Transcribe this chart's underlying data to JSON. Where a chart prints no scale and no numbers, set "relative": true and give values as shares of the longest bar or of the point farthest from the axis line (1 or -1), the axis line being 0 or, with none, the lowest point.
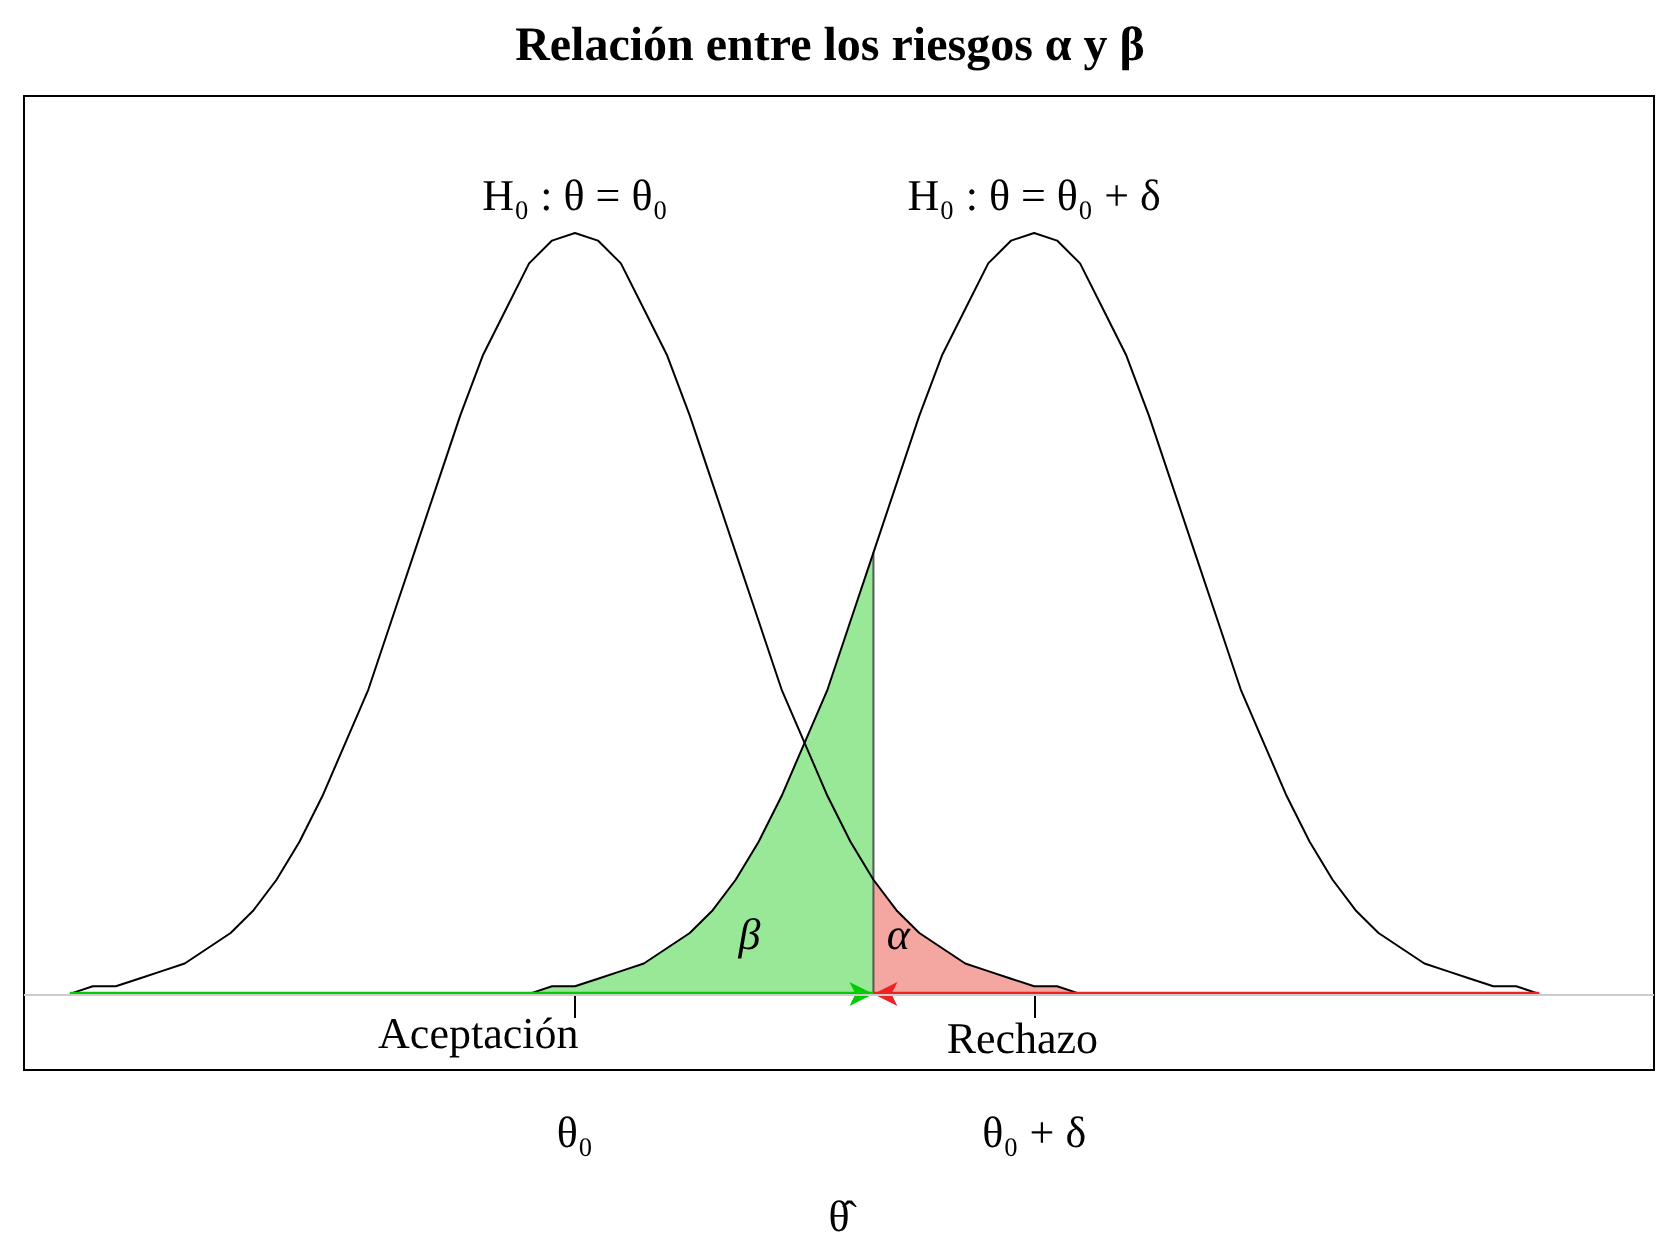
{
  "chart_data": {
    "type": "line",
    "title": "Relación entre los riesgos α y β",
    "xlabel": "θ̂",
    "relative": true,
    "grid": false,
    "categories": [
      null,
      null,
      null,
      null,
      null,
      null,
      null,
      null,
      null,
      null,
      null,
      null,
      null,
      null,
      null,
      null,
      null,
      null,
      null,
      null,
      null,
      null,
      null,
      null,
      "θ₀",
      null,
      null,
      null,
      null,
      null,
      null,
      null,
      null,
      null,
      null,
      null,
      null,
      null,
      null,
      null,
      null,
      null,
      null,
      null,
      "θ₀ + δ",
      null,
      null,
      null,
      null,
      null,
      null,
      null,
      null,
      null,
      null,
      null,
      null,
      null,
      null,
      null,
      null,
      null,
      null,
      null,
      null,
      null,
      null,
      null,
      null,
      null,
      null,
      null
    ],
    "series": [
      {
        "type": "area",
        "color": "#98e898",
        "values": [
          null,
          null,
          null,
          null,
          null,
          null,
          null,
          null,
          null,
          null,
          null,
          null,
          null,
          null,
          null,
          null,
          null,
          null,
          null,
          null,
          null,
          null,
          0,
          0.01,
          0.01,
          0.02,
          0.03,
          0.04,
          0.06,
          0.08,
          0.11,
          0.15,
          0.2,
          0.26,
          0.33,
          0.4,
          0.49,
          0.58,
          null,
          null,
          null,
          null,
          null,
          null,
          null,
          null,
          null,
          null,
          null,
          null,
          null,
          null,
          null,
          null,
          null,
          null,
          null,
          null,
          null,
          null,
          null,
          null,
          null,
          null,
          null,
          null,
          null,
          null,
          null,
          null,
          null,
          null
        ]
      },
      {
        "type": "area",
        "color": "#f4a6a0",
        "values": [
          null,
          null,
          null,
          null,
          null,
          null,
          null,
          null,
          null,
          null,
          null,
          null,
          null,
          null,
          null,
          null,
          null,
          null,
          null,
          null,
          null,
          null,
          null,
          null,
          null,
          null,
          null,
          null,
          null,
          null,
          null,
          null,
          null,
          null,
          null,
          null,
          null,
          0.15,
          0.11,
          0.08,
          0.06,
          0.04,
          0.03,
          0.02,
          0.01,
          0.01,
          0,
          null,
          null,
          null,
          null,
          null,
          null,
          null,
          null,
          null,
          null,
          null,
          null,
          null,
          null,
          null,
          null,
          null,
          null,
          null,
          null,
          null,
          null,
          null,
          null,
          null
        ]
      },
      {
        "type": "bar",
        "color": "#555555",
        "values": [
          null,
          null,
          null,
          null,
          null,
          null,
          null,
          null,
          null,
          null,
          null,
          null,
          null,
          null,
          null,
          null,
          null,
          null,
          null,
          null,
          null,
          null,
          null,
          null,
          null,
          null,
          null,
          null,
          null,
          null,
          null,
          null,
          null,
          null,
          null,
          null,
          null,
          0.58,
          null,
          null,
          null,
          null,
          null,
          null,
          null,
          null,
          null,
          null,
          null,
          null,
          null,
          null,
          null,
          null,
          null,
          null,
          null,
          null,
          null,
          null,
          null,
          null,
          null,
          null,
          null,
          null,
          null,
          null,
          null,
          null,
          null,
          null
        ]
      },
      {
        "color": "#000000",
        "values": [
          null,
          null,
          0,
          0.01,
          0.01,
          0.02,
          0.03,
          0.04,
          0.06,
          0.08,
          0.11,
          0.15,
          0.2,
          0.26,
          0.33,
          0.4,
          0.49,
          0.58,
          0.67,
          0.76,
          0.84,
          0.9,
          0.96,
          0.99,
          1,
          0.99,
          0.96,
          0.9,
          0.84,
          0.76,
          0.67,
          0.58,
          0.49,
          0.4,
          0.33,
          0.26,
          0.2,
          0.15,
          0.11,
          0.08,
          0.06,
          0.04,
          0.03,
          0.02,
          0.01,
          0.01,
          0,
          null,
          null,
          null,
          null,
          null,
          null,
          null,
          null,
          null,
          null,
          null,
          null,
          null,
          null,
          null,
          null,
          null,
          null,
          null,
          null,
          null,
          null,
          null,
          null,
          null
        ]
      },
      {
        "color": "#000000",
        "values": [
          null,
          null,
          null,
          null,
          null,
          null,
          null,
          null,
          null,
          null,
          null,
          null,
          null,
          null,
          null,
          null,
          null,
          null,
          null,
          null,
          null,
          null,
          0,
          0.01,
          0.01,
          0.02,
          0.03,
          0.04,
          0.06,
          0.08,
          0.11,
          0.15,
          0.2,
          0.26,
          0.33,
          0.4,
          0.49,
          0.58,
          0.67,
          0.76,
          0.84,
          0.9,
          0.96,
          0.99,
          1,
          0.99,
          0.96,
          0.9,
          0.84,
          0.76,
          0.67,
          0.58,
          0.49,
          0.4,
          0.33,
          0.26,
          0.2,
          0.15,
          0.11,
          0.08,
          0.06,
          0.04,
          0.03,
          0.02,
          0.01,
          0.01,
          0,
          null,
          null,
          null,
          null,
          null
        ]
      },
      {
        "color": "#00cc00",
        "values": [
          null,
          null,
          0,
          0,
          0,
          0,
          0,
          0,
          0,
          0,
          0,
          0,
          0,
          0,
          0,
          0,
          0,
          0,
          0,
          0,
          0,
          0,
          0,
          0,
          0,
          0,
          0,
          0,
          0,
          0,
          0,
          0,
          0,
          0,
          0,
          0,
          0,
          0,
          null,
          null,
          null,
          null,
          null,
          null,
          null,
          null,
          null,
          null,
          null,
          null,
          null,
          null,
          null,
          null,
          null,
          null,
          null,
          null,
          null,
          null,
          null,
          null,
          null,
          null,
          null,
          null,
          null,
          null,
          null,
          null,
          null,
          null
        ]
      },
      {
        "color": "#ee2222",
        "values": [
          null,
          null,
          null,
          null,
          null,
          null,
          null,
          null,
          null,
          null,
          null,
          null,
          null,
          null,
          null,
          null,
          null,
          null,
          null,
          null,
          null,
          null,
          null,
          null,
          null,
          null,
          null,
          null,
          null,
          null,
          null,
          null,
          null,
          null,
          null,
          null,
          null,
          0,
          0,
          0,
          0,
          0,
          0,
          0,
          0,
          0,
          0,
          0,
          0,
          0,
          0,
          0,
          0,
          0,
          0,
          0,
          0,
          0,
          0,
          0,
          0,
          0,
          0,
          0,
          0,
          0,
          0,
          null,
          null,
          null,
          null,
          null
        ]
      }
    ],
    "ref_lines": [
      {
        "axis": "y",
        "value": 0,
        "color": "#cccccc"
      }
    ],
    "annotations": [
      {
        "text": "H₀ : θ = θ₀",
        "x": "θ₀",
        "y": 1
      },
      {
        "text": "H₀ : θ = θ₀ + δ",
        "x": "θ₀ + δ",
        "y": 1
      },
      "β",
      "α",
      "Aceptación",
      "Rechazo"
    ]
  }
}
